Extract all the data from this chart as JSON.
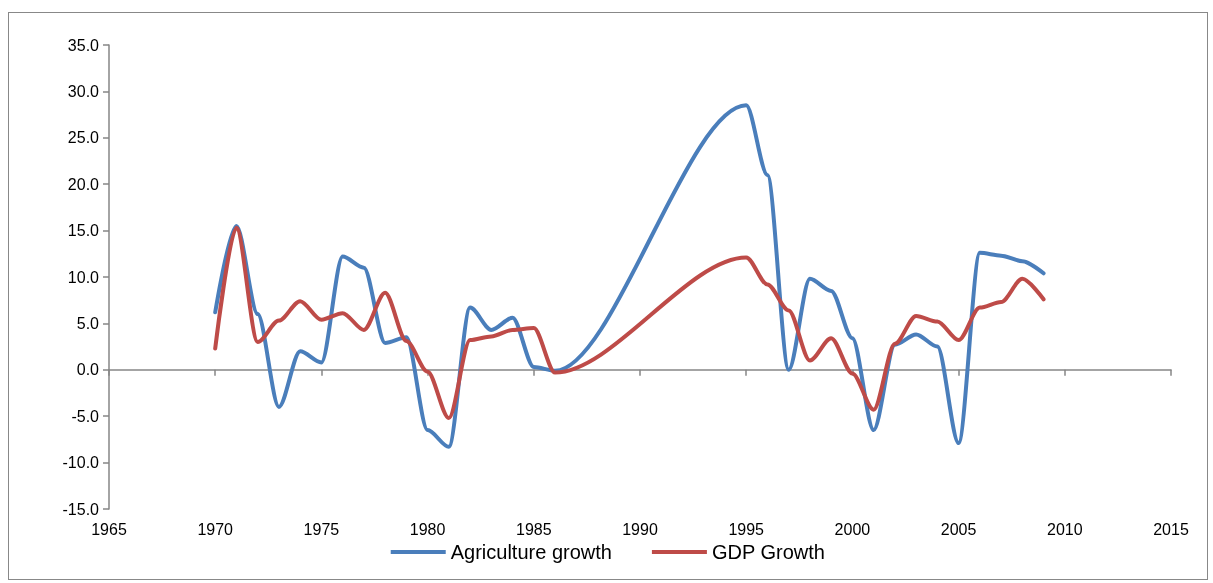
{
  "chart_data": {
    "type": "line",
    "x": [
      1970,
      1971,
      1972,
      1973,
      1974,
      1975,
      1976,
      1977,
      1978,
      1979,
      1980,
      1981,
      1982,
      1983,
      1984,
      1985,
      1986,
      1995,
      1996,
      1997,
      1998,
      1999,
      2000,
      2001,
      2002,
      2003,
      2004,
      2005,
      2006,
      2007,
      2008,
      2009
    ],
    "series": [
      {
        "name": "Agriculture growth",
        "color": "#4a7ebb",
        "values": [
          6.2,
          15.5,
          6.0,
          -4.0,
          2.0,
          0.8,
          12.2,
          11.0,
          2.9,
          3.5,
          -6.5,
          -8.3,
          6.7,
          4.3,
          5.6,
          0.3,
          -0.1,
          28.5,
          21.0,
          0.0,
          9.8,
          8.5,
          3.4,
          -6.5,
          2.7,
          3.8,
          2.5,
          -7.9,
          12.6,
          12.3,
          11.7,
          10.4
        ]
      },
      {
        "name": "GDP Growth",
        "color": "#be4b48",
        "values": [
          2.3,
          15.3,
          3.0,
          5.3,
          7.4,
          5.4,
          6.1,
          4.3,
          8.3,
          3.1,
          -0.2,
          -5.2,
          3.2,
          3.6,
          4.3,
          4.5,
          -0.3,
          12.1,
          9.2,
          6.4,
          1.0,
          3.4,
          -0.4,
          -4.3,
          2.8,
          5.8,
          5.2,
          3.2,
          6.7,
          7.3,
          9.8,
          7.6
        ]
      }
    ],
    "xlim": [
      1965,
      2015
    ],
    "xticks": [
      1965,
      1970,
      1975,
      1980,
      1985,
      1990,
      1995,
      2000,
      2005,
      2010,
      2015
    ],
    "ylim": [
      -15,
      35
    ],
    "yticks": [
      {
        "value": -15,
        "label": "-15.0"
      },
      {
        "value": -10,
        "label": "-10.0"
      },
      {
        "value": -5,
        "label": "-5.0"
      },
      {
        "value": 0,
        "label": "0.0"
      },
      {
        "value": 5,
        "label": "5.0"
      },
      {
        "value": 10,
        "label": "10.0"
      },
      {
        "value": 15,
        "label": "15.0"
      },
      {
        "value": 20,
        "label": "20.0"
      },
      {
        "value": 25,
        "label": "25.0"
      },
      {
        "value": 30,
        "label": "30.0"
      },
      {
        "value": 35,
        "label": "35.0"
      }
    ],
    "legend": "bottom",
    "marker": "none",
    "line_style": "solid"
  }
}
